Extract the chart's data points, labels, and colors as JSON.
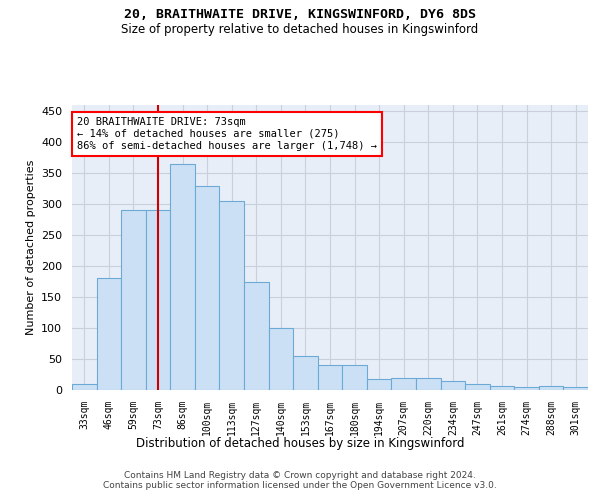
{
  "title1": "20, BRAITHWAITE DRIVE, KINGSWINFORD, DY6 8DS",
  "title2": "Size of property relative to detached houses in Kingswinford",
  "xlabel": "Distribution of detached houses by size in Kingswinford",
  "ylabel": "Number of detached properties",
  "footer1": "Contains HM Land Registry data © Crown copyright and database right 2024.",
  "footer2": "Contains public sector information licensed under the Open Government Licence v3.0.",
  "annotation_line1": "20 BRAITHWAITE DRIVE: 73sqm",
  "annotation_line2": "← 14% of detached houses are smaller (275)",
  "annotation_line3": "86% of semi-detached houses are larger (1,748) →",
  "bar_color": "#cce0f5",
  "bar_edge_color": "#6aaad4",
  "vline_color": "#cc0000",
  "categories": [
    "33sqm",
    "46sqm",
    "59sqm",
    "73sqm",
    "86sqm",
    "100sqm",
    "113sqm",
    "127sqm",
    "140sqm",
    "153sqm",
    "167sqm",
    "180sqm",
    "194sqm",
    "207sqm",
    "220sqm",
    "234sqm",
    "247sqm",
    "261sqm",
    "274sqm",
    "288sqm",
    "301sqm"
  ],
  "values": [
    10,
    180,
    290,
    290,
    365,
    330,
    305,
    175,
    100,
    55,
    40,
    40,
    18,
    20,
    20,
    15,
    10,
    7,
    5,
    7,
    5
  ],
  "ylim": [
    0,
    460
  ],
  "yticks": [
    0,
    50,
    100,
    150,
    200,
    250,
    300,
    350,
    400,
    450
  ],
  "vline_x_idx": 3,
  "grid_color": "#c8d0dc",
  "bg_color": "#ffffff",
  "plot_bg_color": "#e8eef8"
}
